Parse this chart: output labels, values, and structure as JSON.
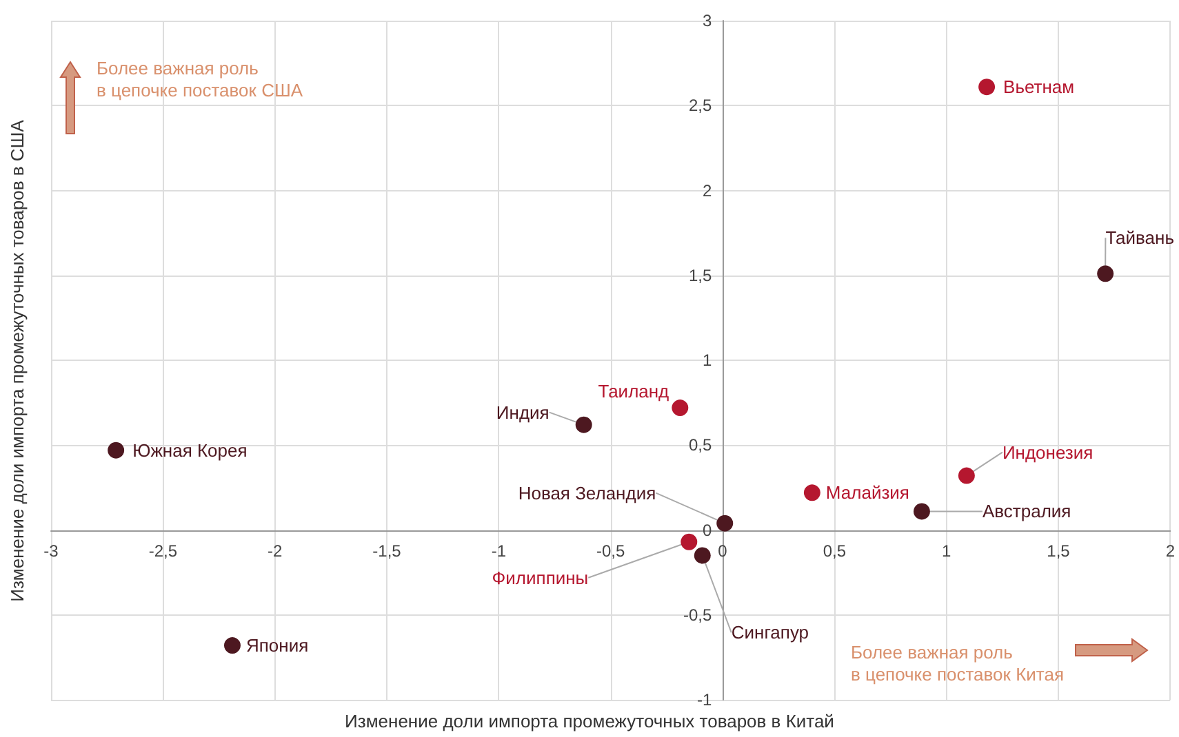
{
  "chart_data": {
    "type": "scatter",
    "xlabel": "Изменение доли импорта промежуточных товаров в Китай",
    "ylabel": "Изменение доли импорта промежуточных товаров в США",
    "xlim": [
      -3,
      2
    ],
    "xticks": [
      -3,
      {
        "value": -2.5,
        "label": "-2,5"
      },
      -2,
      {
        "value": -1.5,
        "label": "-1,5"
      },
      -1,
      {
        "value": -0.5,
        "label": "-0,5"
      },
      0,
      {
        "value": 0.5,
        "label": "0,5"
      },
      1,
      {
        "value": 1.5,
        "label": "1,5"
      },
      2
    ],
    "ylim": [
      -1,
      3
    ],
    "yticks": [
      -1,
      {
        "value": -0.5,
        "label": "-0,5"
      },
      0,
      {
        "value": 0.5,
        "label": "0,5"
      },
      1,
      {
        "value": 1.5,
        "label": "1,5"
      },
      2,
      {
        "value": 2.5,
        "label": "2,5"
      },
      3
    ],
    "grid": true,
    "marker": "circle",
    "series": [
      {
        "color": "#b5172f",
        "x": [
          1.18,
          -0.19,
          1.09,
          0.4,
          -0.15
        ],
        "values": [
          2.61,
          0.72,
          0.32,
          0.22,
          -0.07
        ],
        "value_labels": [
          "Вьетнам",
          "Таиланд",
          "Индонезия",
          "Малайзия",
          "Филиппины"
        ]
      },
      {
        "color": "#4d1820",
        "x": [
          1.71,
          -0.62,
          -2.71,
          0.01,
          0.89,
          -0.09,
          -2.19
        ],
        "values": [
          1.51,
          0.62,
          0.47,
          0.04,
          0.11,
          -0.15,
          -0.68
        ],
        "value_labels": [
          "Тайвань",
          "Индия",
          "Южная Корея",
          "Новая Зеландия",
          "Австралия",
          "Сингапур",
          "Япония"
        ]
      }
    ],
    "annotations": [
      "Более важная роль\nв цепочке поставок США",
      "Более важная роль\nв цепочке поставок Китая"
    ]
  }
}
